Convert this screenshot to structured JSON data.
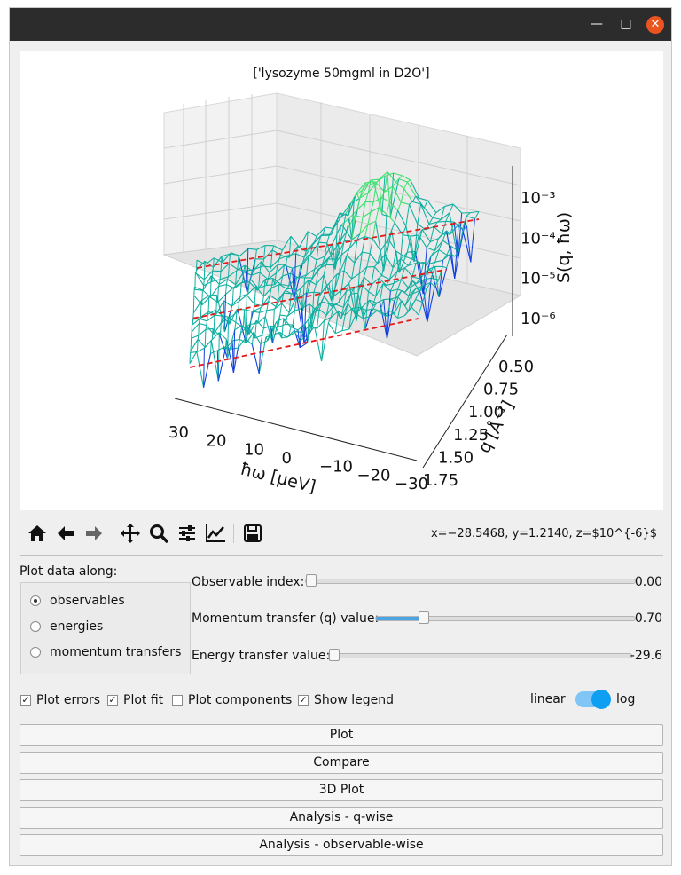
{
  "window": {
    "minimize": "—",
    "maximize": "□",
    "close": "✕"
  },
  "plot": {
    "title": "['lysozyme 50mgml in D2O']",
    "x_axis": {
      "label": "ħω [μeV]",
      "ticks": [
        "30",
        "20",
        "10",
        "0",
        "−10",
        "−20",
        "−30"
      ]
    },
    "y_axis": {
      "label": "q [Å⁻¹]",
      "ticks": [
        "0.50",
        "0.75",
        "1.00",
        "1.25",
        "1.50",
        "1.75"
      ]
    },
    "z_axis": {
      "label": "S(q, ħω)",
      "ticks": [
        "10⁻³",
        "10⁻⁴",
        "10⁻⁵",
        "10⁻⁶"
      ]
    },
    "colors": {
      "surface_low": "#1040e0",
      "surface_mid": "#10b0a0",
      "surface_high": "#40e070",
      "fit": "#e41a1c"
    }
  },
  "toolbar": {
    "icons": [
      "home-icon",
      "back-arrow-icon",
      "forward-arrow-icon",
      "pan-icon",
      "zoom-icon",
      "configure-subplots-icon",
      "edit-axis-icon",
      "save-icon"
    ],
    "coordinates": "x=−28.5468, y=1.2140, z=$10^{-6}$"
  },
  "controls": {
    "plot_along_label": "Plot data along:",
    "radios": [
      {
        "label": "observables",
        "checked": true
      },
      {
        "label": "energies",
        "checked": false
      },
      {
        "label": "momentum transfers",
        "checked": false
      }
    ],
    "sliders": [
      {
        "label": "Observable index:",
        "value": "0.00",
        "fraction": 0.0
      },
      {
        "label": "Momentum transfer (q) value:",
        "value": "0.70",
        "fraction": 0.18
      },
      {
        "label": "Energy transfer value:",
        "value": "-29.6",
        "fraction": 0.0
      }
    ],
    "checkboxes": [
      {
        "label": "Plot errors",
        "checked": true
      },
      {
        "label": "Plot fit",
        "checked": true
      },
      {
        "label": "Plot components",
        "checked": false
      },
      {
        "label": "Show legend",
        "checked": true
      }
    ],
    "scale_toggle": {
      "left": "linear",
      "right": "log",
      "value": "log"
    }
  },
  "buttons": [
    "Plot",
    "Compare",
    "3D Plot",
    "Analysis - q-wise",
    "Analysis - observable-wise"
  ]
}
